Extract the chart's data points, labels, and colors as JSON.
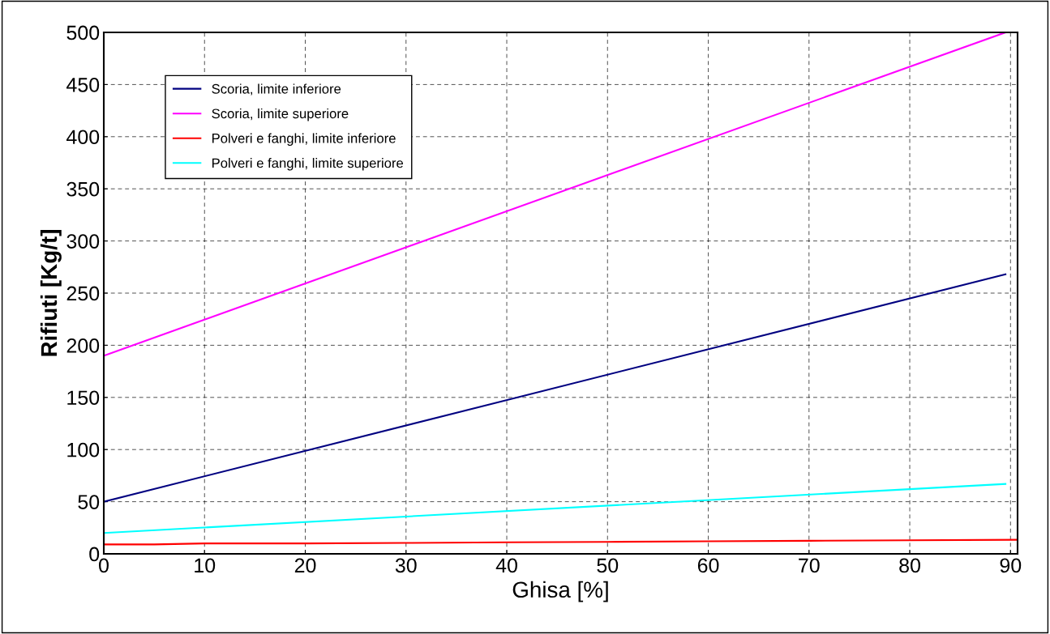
{
  "chart_data": {
    "type": "line",
    "xlabel": "Ghisa [%]",
    "ylabel": "Rifiuti [Kg/t]",
    "xlim": [
      0,
      90.7
    ],
    "ylim": [
      0,
      500
    ],
    "xticks": [
      0,
      10,
      20,
      30,
      40,
      50,
      60,
      70,
      80,
      90
    ],
    "yticks": [
      0,
      50,
      100,
      150,
      200,
      250,
      300,
      350,
      400,
      450,
      500
    ],
    "grid": true,
    "line_style": "solid",
    "marker": "none",
    "legend": "top left",
    "series": [
      {
        "name": "Scoria, limite inferiore",
        "color": "#000080",
        "x": [
          0,
          89.5
        ],
        "values": [
          50,
          268
        ]
      },
      {
        "name": "Scoria, limite superiore",
        "color": "#ff00ff",
        "x": [
          0,
          89.5
        ],
        "values": [
          190,
          500
        ]
      },
      {
        "name": "Polveri e fanghi, limite inferiore",
        "color": "#ff0000",
        "x": [
          0,
          5,
          10,
          20,
          30,
          40,
          50,
          60,
          70,
          80,
          90.7
        ],
        "values": [
          9,
          9,
          10,
          10,
          10.5,
          11,
          11.5,
          12,
          12.5,
          13,
          13.5
        ]
      },
      {
        "name": "Polveri e fanghi, limite superiore",
        "color": "#00ffff",
        "x": [
          0,
          89.5
        ],
        "values": [
          20,
          67
        ]
      }
    ]
  }
}
